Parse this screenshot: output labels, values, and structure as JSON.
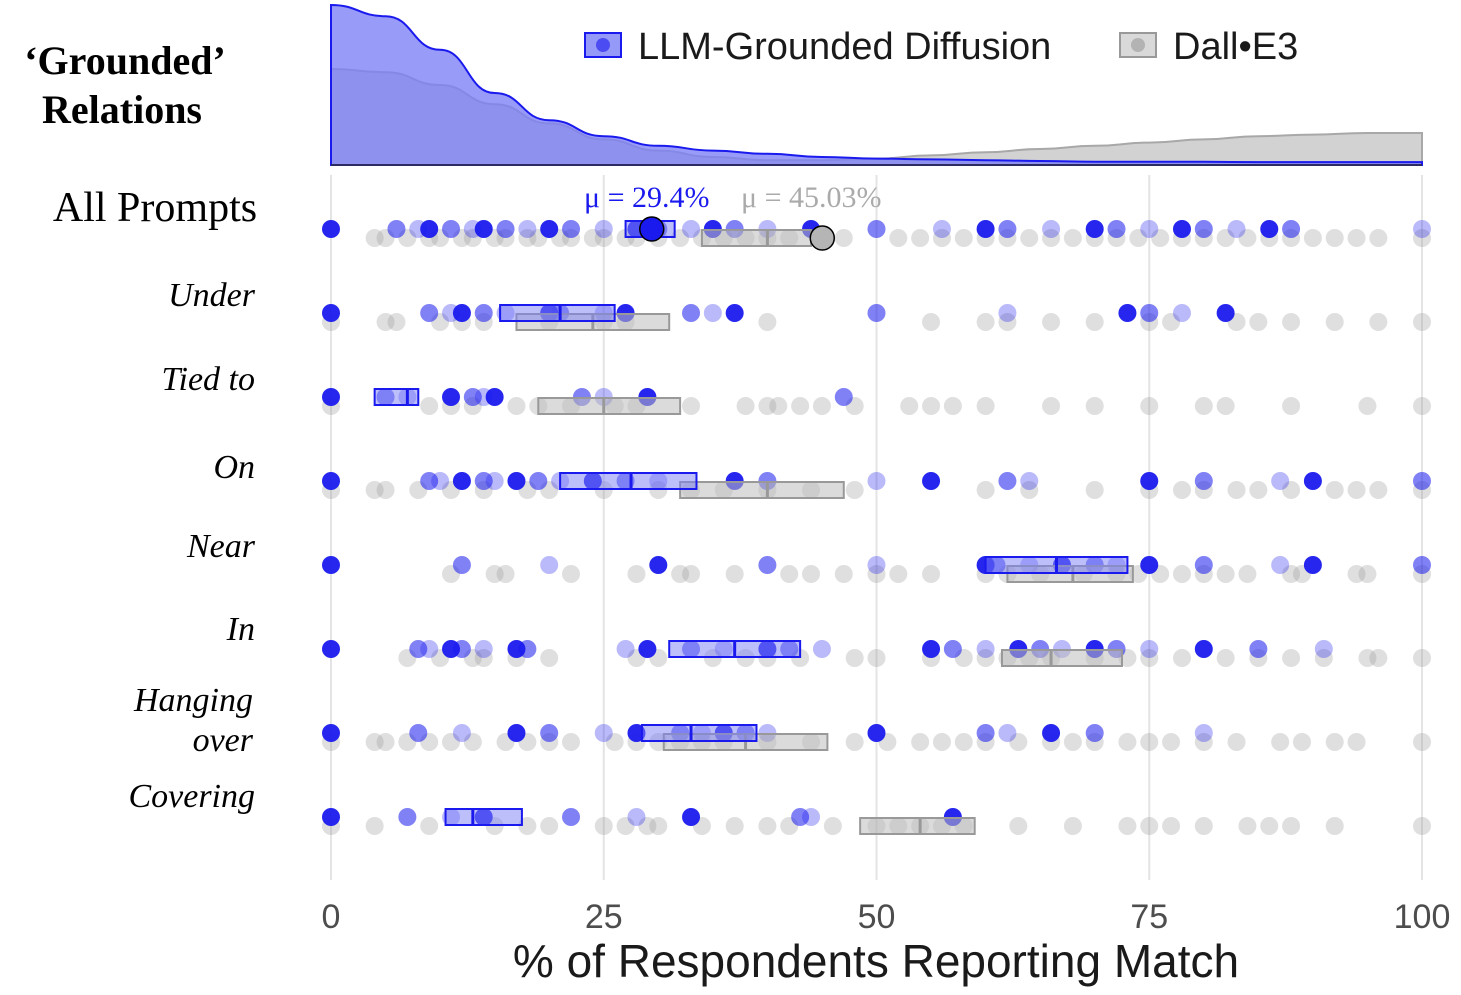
{
  "chart_data": {
    "type": "strip_box_density",
    "panel_title_line1": "‘Grounded’",
    "panel_title_line2": "Relations",
    "xlabel": "% of Respondents Reporting Match",
    "xlim": [
      0,
      100
    ],
    "xticks": [
      0,
      25,
      50,
      75,
      100
    ],
    "tick_labels": [
      "0",
      "25",
      "50",
      "75",
      "100"
    ],
    "grid": true,
    "legend_position": "top-right",
    "series": [
      {
        "key": "llm",
        "name": "LLM-Grounded Diffusion",
        "color": "#1a1aee",
        "fill": "#7b7ff5",
        "mean": 29.4,
        "mean_label": "μ = 29.4%"
      },
      {
        "key": "dalle",
        "name": "Dall•E3",
        "color": "#999999",
        "fill": "#d0d0d0",
        "mean": 45.03,
        "mean_label": "μ = 45.03%"
      }
    ],
    "density": {
      "x": [
        0,
        5,
        10,
        15,
        20,
        25,
        30,
        35,
        40,
        45,
        50,
        55,
        60,
        65,
        70,
        75,
        80,
        85,
        90,
        95,
        100
      ],
      "llm": [
        1.0,
        0.93,
        0.72,
        0.45,
        0.28,
        0.18,
        0.12,
        0.09,
        0.07,
        0.05,
        0.04,
        0.035,
        0.03,
        0.025,
        0.02,
        0.02,
        0.02,
        0.018,
        0.018,
        0.018,
        0.018
      ],
      "dalle": [
        0.6,
        0.58,
        0.5,
        0.38,
        0.26,
        0.16,
        0.09,
        0.05,
        0.03,
        0.03,
        0.04,
        0.06,
        0.08,
        0.1,
        0.12,
        0.14,
        0.16,
        0.18,
        0.19,
        0.2,
        0.2
      ]
    },
    "rows": [
      {
        "label": "All Prompts",
        "bold_label": true,
        "llm": {
          "box": [
            27,
            31.5
          ],
          "median": 29,
          "points": [
            0,
            6,
            8,
            9,
            11,
            13,
            14,
            16,
            18,
            20,
            22,
            25,
            28,
            30,
            33,
            35,
            37,
            40,
            44,
            50,
            56,
            60,
            62,
            66,
            70,
            72,
            75,
            78,
            80,
            83,
            86,
            88,
            100
          ]
        },
        "dalle": {
          "box": [
            34,
            44
          ],
          "median": 40,
          "points": [
            4,
            5,
            7,
            9,
            10,
            12,
            13,
            15,
            16,
            18,
            19,
            21,
            22,
            24,
            25,
            27,
            28,
            30,
            32,
            34,
            36,
            38,
            40,
            42,
            45,
            47,
            52,
            54,
            56,
            58,
            60,
            62,
            64,
            66,
            68,
            70,
            72,
            74,
            76,
            78,
            80,
            82,
            84,
            86,
            88,
            90,
            92,
            94,
            96,
            100
          ]
        }
      },
      {
        "label": "Under",
        "bold_label": false,
        "llm": {
          "box": [
            15.5,
            26
          ],
          "median": 21,
          "points": [
            0,
            9,
            11,
            12,
            14,
            16,
            20,
            21,
            25,
            27,
            33,
            35,
            37,
            50,
            62,
            73,
            75,
            78,
            82
          ]
        },
        "dalle": {
          "box": [
            17,
            31
          ],
          "median": 24,
          "points": [
            0,
            5,
            6,
            10,
            12,
            14,
            20,
            25,
            27,
            40,
            55,
            60,
            62,
            66,
            70,
            75,
            77,
            83,
            85,
            88,
            92,
            96,
            100
          ]
        }
      },
      {
        "label": "Tied to",
        "bold_label": false,
        "llm": {
          "box": [
            4,
            8
          ],
          "median": 7,
          "points": [
            0,
            5,
            7,
            11,
            13,
            14,
            15,
            23,
            25,
            29,
            47
          ]
        },
        "dalle": {
          "box": [
            19,
            32
          ],
          "median": 25,
          "points": [
            0,
            9,
            11,
            13,
            17,
            19,
            22,
            26,
            28,
            33,
            38,
            40,
            41,
            43,
            45,
            48,
            53,
            55,
            57,
            60,
            66,
            70,
            75,
            80,
            82,
            88,
            95,
            100
          ]
        }
      },
      {
        "label": "On",
        "bold_label": false,
        "llm": {
          "box": [
            21,
            33.5
          ],
          "median": 27.5,
          "points": [
            0,
            9,
            10,
            12,
            14,
            15,
            17,
            19,
            21,
            24,
            27,
            30,
            37,
            40,
            50,
            55,
            62,
            64,
            75,
            80,
            87,
            90,
            100
          ]
        },
        "dalle": {
          "box": [
            32,
            47
          ],
          "median": 40,
          "points": [
            0,
            4,
            5,
            8,
            11,
            14,
            18,
            20,
            25,
            30,
            33,
            36,
            40,
            44,
            48,
            60,
            64,
            70,
            75,
            78,
            80,
            83,
            85,
            88,
            92,
            94,
            96,
            100
          ]
        }
      },
      {
        "label": "Near",
        "bold_label": false,
        "llm": {
          "box": [
            60,
            73
          ],
          "median": 66.5,
          "points": [
            0,
            12,
            20,
            30,
            40,
            50,
            60,
            61,
            64,
            67,
            70,
            72,
            75,
            80,
            87,
            90,
            100
          ]
        },
        "dalle": {
          "box": [
            62,
            73.5
          ],
          "median": 68,
          "points": [
            11,
            15,
            16,
            22,
            28,
            32,
            33,
            37,
            42,
            44,
            47,
            50,
            52,
            55,
            60,
            62,
            65,
            69,
            72,
            74,
            76,
            78,
            80,
            82,
            84,
            88,
            89,
            94,
            95,
            100
          ]
        }
      },
      {
        "label": "In",
        "bold_label": false,
        "llm": {
          "box": [
            31,
            43
          ],
          "median": 37,
          "points": [
            0,
            8,
            9,
            11,
            12,
            14,
            17,
            18,
            27,
            29,
            33,
            36,
            40,
            42,
            45,
            55,
            57,
            60,
            63,
            65,
            67,
            70,
            72,
            75,
            80,
            85,
            91
          ]
        },
        "dalle": {
          "box": [
            61.5,
            72.5
          ],
          "median": 66,
          "points": [
            7,
            10,
            13,
            14,
            17,
            20,
            28,
            30,
            35,
            38,
            40,
            43,
            48,
            50,
            55,
            58,
            60,
            62,
            64,
            66,
            70,
            73,
            75,
            78,
            82,
            85,
            88,
            91,
            95,
            96,
            100
          ]
        }
      },
      {
        "label": "Hanging over",
        "bold_label": false,
        "llm": {
          "box": [
            28.5,
            39
          ],
          "median": 33,
          "points": [
            0,
            8,
            12,
            17,
            20,
            25,
            28,
            32,
            34,
            36,
            38,
            40,
            50,
            60,
            62,
            66,
            70,
            80
          ]
        },
        "dalle": {
          "box": [
            30.5,
            45.5
          ],
          "median": 38,
          "points": [
            0,
            4,
            5,
            7,
            9,
            11,
            13,
            16,
            18,
            20,
            22,
            26,
            28,
            30,
            32,
            34,
            36,
            40,
            44,
            48,
            51,
            54,
            56,
            58,
            60,
            63,
            66,
            68,
            70,
            73,
            75,
            77,
            80,
            83,
            87,
            89,
            92,
            94,
            100
          ]
        }
      },
      {
        "label": "Covering",
        "bold_label": false,
        "llm": {
          "box": [
            10.5,
            17.5
          ],
          "median": 13,
          "points": [
            0,
            7,
            11,
            14,
            22,
            28,
            33,
            43,
            44,
            57
          ]
        },
        "dalle": {
          "box": [
            48.5,
            59
          ],
          "median": 54,
          "points": [
            0,
            4,
            9,
            15,
            18,
            20,
            25,
            27,
            29,
            30,
            34,
            37,
            40,
            42,
            46,
            50,
            52,
            54,
            56,
            58,
            63,
            68,
            73,
            75,
            77,
            80,
            84,
            86,
            88,
            92,
            100
          ]
        }
      }
    ]
  }
}
